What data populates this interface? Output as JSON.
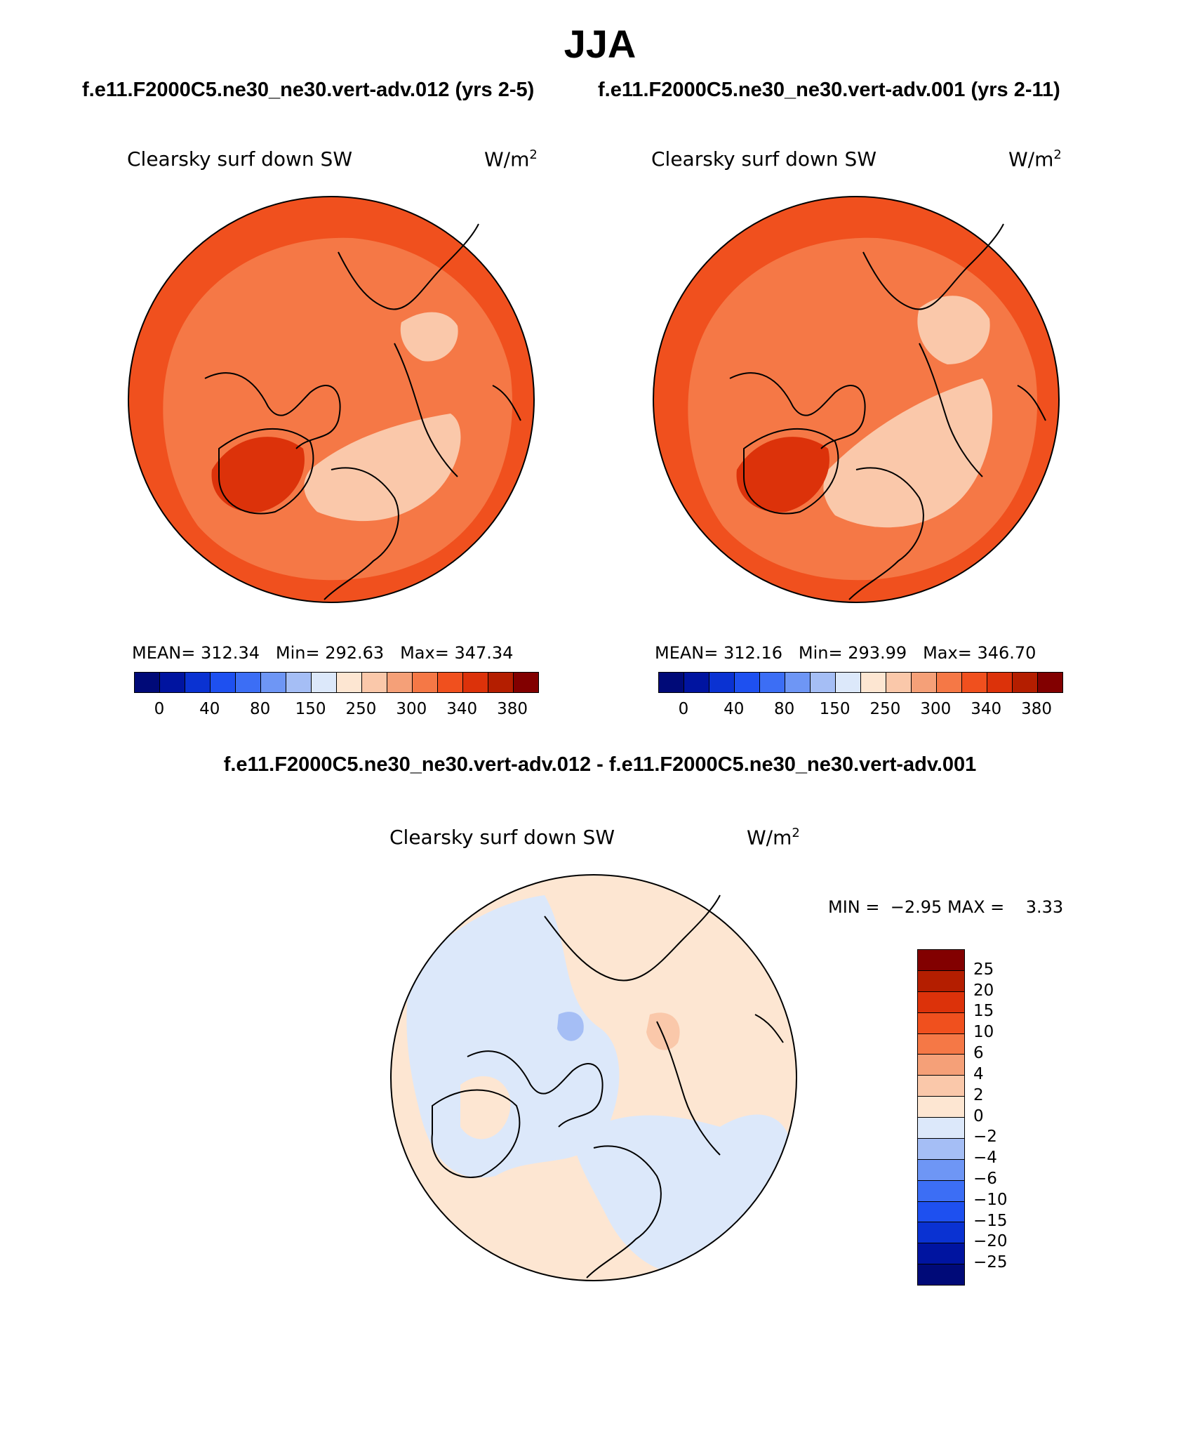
{
  "title": "JJA",
  "chart_data": [
    {
      "type": "heatmap",
      "projection": "north polar stereographic",
      "case_title": "f.e11.F2000C5.ne30_ne30.vert-adv.012 (yrs 2-5)",
      "variable": "Clearsky surf down SW",
      "units_text": "W/m",
      "units_exp": "2",
      "stats": {
        "mean_label": "MEAN=",
        "mean": "312.34",
        "min_label": "Min=",
        "min": "292.63",
        "max_label": "Max=",
        "max": "347.34"
      },
      "colorbar_ticks": [
        "0",
        "40",
        "80",
        "150",
        "250",
        "300",
        "340",
        "380"
      ],
      "dominant_range": [
        300,
        340
      ]
    },
    {
      "type": "heatmap",
      "projection": "north polar stereographic",
      "case_title": "f.e11.F2000C5.ne30_ne30.vert-adv.001 (yrs 2-11)",
      "variable": "Clearsky surf down SW",
      "units_text": "W/m",
      "units_exp": "2",
      "stats": {
        "mean_label": "MEAN=",
        "mean": "312.16",
        "min_label": "Min=",
        "min": "293.99",
        "max_label": "Max=",
        "max": "346.70"
      },
      "colorbar_ticks": [
        "0",
        "40",
        "80",
        "150",
        "250",
        "300",
        "340",
        "380"
      ],
      "dominant_range": [
        300,
        340
      ]
    },
    {
      "type": "heatmap",
      "projection": "north polar stereographic",
      "case_title": "f.e11.F2000C5.ne30_ne30.vert-adv.012 - f.e11.F2000C5.ne30_ne30.vert-adv.001",
      "variable": "Clearsky surf down SW",
      "units_text": "W/m",
      "units_exp": "2",
      "stats": {
        "min_label": "MIN =",
        "min": "−2.95",
        "max_label": "MAX =",
        "max": "3.33"
      },
      "colorbar_ticks": [
        "25",
        "20",
        "15",
        "10",
        "6",
        "4",
        "2",
        "0",
        "−2",
        "−4",
        "−6",
        "−10",
        "−15",
        "−20",
        "−25"
      ],
      "dominant_range": [
        -2,
        2
      ]
    }
  ],
  "colors": {
    "seq_palette": [
      "#000a78",
      "#0014a0",
      "#0a32d2",
      "#1e50f0",
      "#3c6ef5",
      "#6e96f5",
      "#a5bef5",
      "#dce8fa",
      "#fde6d2",
      "#fac8aa",
      "#f5a078",
      "#f57846",
      "#f0501e",
      "#dc320a",
      "#b41e00",
      "#820000"
    ],
    "div_palette": [
      "#820000",
      "#b41e00",
      "#dc320a",
      "#f0501e",
      "#f57846",
      "#f5a078",
      "#fac8aa",
      "#fde6d2",
      "#dce8fa",
      "#a5bef5",
      "#6e96f5",
      "#3c6ef5",
      "#1e50f0",
      "#0a32d2",
      "#0014a0",
      "#000a78"
    ],
    "map1_base": "#f57846",
    "map1_edge": "#f0501e",
    "map1_light": "#fac8aa",
    "map1_dark": "#dc320a",
    "diff_pos": "#fde6d2",
    "diff_neg": "#dce8fa",
    "diff_pos2": "#fac8aa",
    "diff_neg2": "#a5bef5",
    "coast": "#000000"
  }
}
